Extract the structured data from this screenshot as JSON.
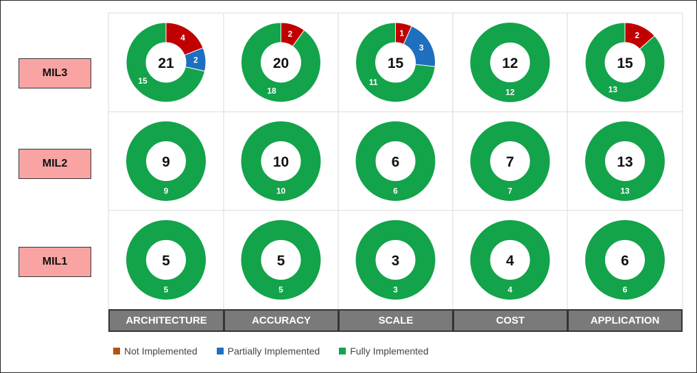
{
  "chart_data": {
    "type": "donut-grid",
    "rows": [
      "MIL3",
      "MIL2",
      "MIL1"
    ],
    "columns": [
      "ARCHITECTURE",
      "ACCURACY",
      "SCALE",
      "COST",
      "APPLICATION"
    ],
    "legend": [
      {
        "name": "Not Implemented",
        "color": "#c0504d"
      },
      {
        "name": "Partially Implemented",
        "color": "#1f6fbf"
      },
      {
        "name": "Fully Implemented",
        "color": "#13a34a"
      }
    ],
    "legend_swatch_colors": [
      "#b5540f",
      "#1f6fbf",
      "#13a34a"
    ],
    "slice_colors": {
      "not": "#c00000",
      "partial": "#1f6fbf",
      "full": "#13a34a"
    },
    "cells": [
      [
        {
          "total": "21",
          "not": 4,
          "partial": 2,
          "full": 15
        },
        {
          "total": "20",
          "not": 2,
          "partial": 0,
          "full": 18
        },
        {
          "total": "15",
          "not": 1,
          "partial": 3,
          "full": 11
        },
        {
          "total": "12",
          "not": 0,
          "partial": 0,
          "full": 12
        },
        {
          "total": "15",
          "not": 2,
          "partial": 0,
          "full": 13
        }
      ],
      [
        {
          "total": "9",
          "not": 0,
          "partial": 0,
          "full": 9
        },
        {
          "total": "10",
          "not": 0,
          "partial": 0,
          "full": 10
        },
        {
          "total": "6",
          "not": 0,
          "partial": 0,
          "full": 6
        },
        {
          "total": "7",
          "not": 0,
          "partial": 0,
          "full": 7
        },
        {
          "total": "13",
          "not": 0,
          "partial": 0,
          "full": 13
        }
      ],
      [
        {
          "total": "5",
          "not": 0,
          "partial": 0,
          "full": 5
        },
        {
          "total": "5",
          "not": 0,
          "partial": 0,
          "full": 5
        },
        {
          "total": "3",
          "not": 0,
          "partial": 0,
          "full": 3
        },
        {
          "total": "4",
          "not": 0,
          "partial": 0,
          "full": 4
        },
        {
          "total": "6",
          "not": 0,
          "partial": 0,
          "full": 6
        }
      ]
    ]
  }
}
